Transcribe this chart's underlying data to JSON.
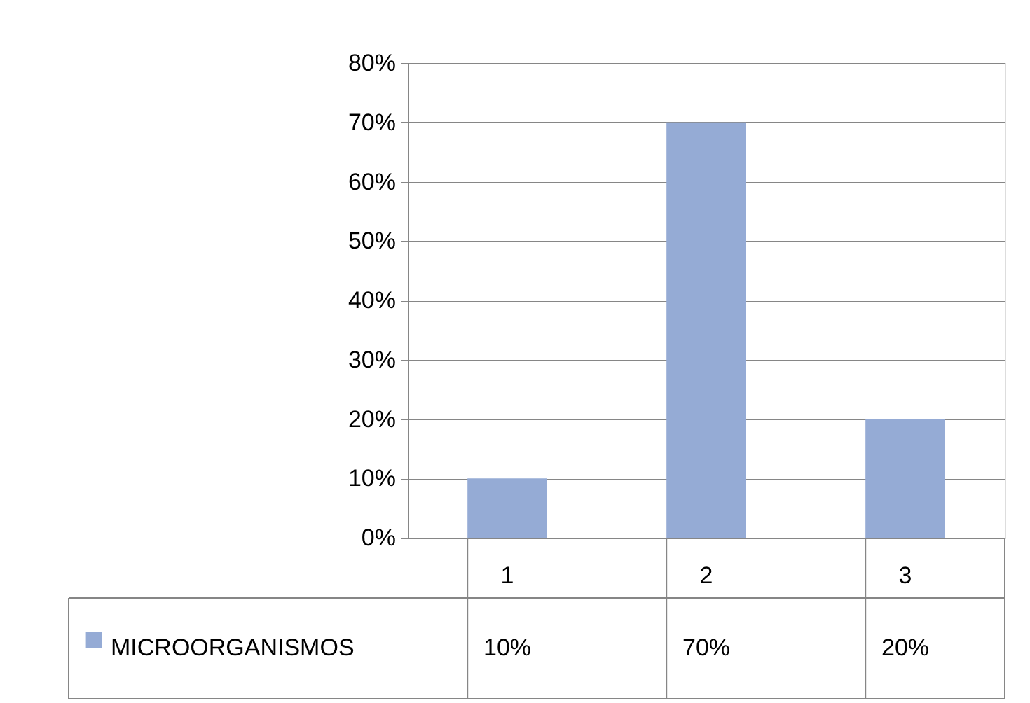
{
  "chart_data": {
    "type": "bar",
    "categories": [
      "1",
      "2",
      "3"
    ],
    "series": [
      {
        "name": "MICROORGANISMOS",
        "color": "#95abd5",
        "values": [
          10,
          70,
          20
        ],
        "value_labels": [
          "10%",
          "70%",
          "20%"
        ]
      }
    ],
    "ylim": [
      0,
      80
    ],
    "yticks": [
      {
        "value": 0,
        "label": "0%"
      },
      {
        "value": 10,
        "label": "10%"
      },
      {
        "value": 20,
        "label": "20%"
      },
      {
        "value": 30,
        "label": "30%"
      },
      {
        "value": 40,
        "label": "40%"
      },
      {
        "value": 50,
        "label": "50%"
      },
      {
        "value": 60,
        "label": "60%"
      },
      {
        "value": 70,
        "label": "70%"
      },
      {
        "value": 80,
        "label": "80%"
      }
    ],
    "grid": "y",
    "legend": "bottom"
  }
}
